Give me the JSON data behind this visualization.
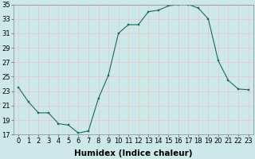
{
  "x": [
    0,
    1,
    2,
    3,
    4,
    5,
    6,
    7,
    8,
    9,
    10,
    11,
    12,
    13,
    14,
    15,
    16,
    17,
    18,
    19,
    20,
    21,
    22,
    23
  ],
  "y": [
    23.5,
    21.5,
    20.0,
    20.0,
    18.5,
    18.3,
    17.2,
    17.5,
    22.0,
    25.2,
    31.0,
    32.2,
    32.2,
    34.0,
    34.2,
    34.8,
    35.0,
    35.0,
    34.5,
    33.0,
    27.2,
    24.5,
    23.3,
    23.2
  ],
  "xlabel": "Humidex (Indice chaleur)",
  "ylim": [
    17,
    35
  ],
  "xlim": [
    -0.5,
    23.5
  ],
  "yticks": [
    17,
    19,
    21,
    23,
    25,
    27,
    29,
    31,
    33,
    35
  ],
  "xticks": [
    0,
    1,
    2,
    3,
    4,
    5,
    6,
    7,
    8,
    9,
    10,
    11,
    12,
    13,
    14,
    15,
    16,
    17,
    18,
    19,
    20,
    21,
    22,
    23
  ],
  "line_color": "#1a6b5a",
  "marker_color": "#1a6b5a",
  "bg_color": "#cce8e8",
  "grid_color": "#e8c8c8",
  "font_color": "#000000",
  "xlabel_fontsize": 7.5,
  "tick_fontsize": 6.0
}
